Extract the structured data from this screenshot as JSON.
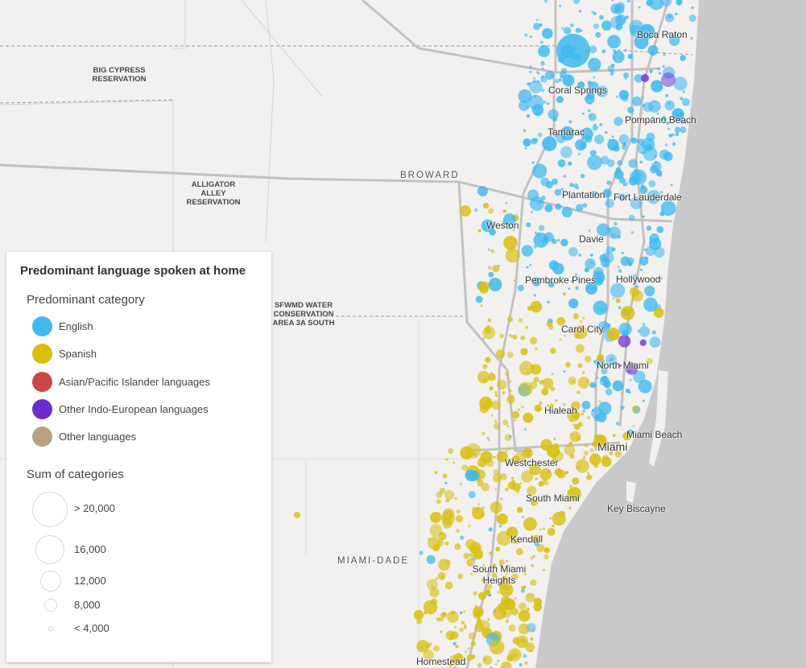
{
  "map": {
    "places": [
      "Boca Raton",
      "Coral Springs",
      "Pompano Beach",
      "Tamarac",
      "Plantation",
      "Fort Lauderdale",
      "Weston",
      "Davie",
      "Pembroke Pines",
      "Hollywood",
      "Carol City",
      "North Miami",
      "Hialeah",
      "Miami Beach",
      "Miami",
      "Westchester",
      "South Miami",
      "Key Biscayne",
      "Kendall",
      "South Miami Heights",
      "Homestead"
    ],
    "areas": [
      "BIG CYPRESS RESERVATION",
      "ALLIGATOR ALLEY RESERVATION",
      "SFWMD WATER CONSERVATION AREA 3A SOUTH"
    ],
    "counties": [
      "BROWARD",
      "MIAMI-DADE"
    ]
  },
  "legend": {
    "title": "Predominant language spoken at home",
    "category_title": "Predominant category",
    "categories": [
      {
        "label": "English",
        "color": "#40b9ef"
      },
      {
        "label": "Spanish",
        "color": "#d8bf12"
      },
      {
        "label": "Asian/Pacific Islander languages",
        "color": "#c84848"
      },
      {
        "label": "Other Indo-European languages",
        "color": "#6d2ccc"
      },
      {
        "label": "Other languages",
        "color": "#b9a284"
      }
    ],
    "size_title": "Sum of categories",
    "sizes": [
      "> 20,000",
      "16,000",
      "12,000",
      "8,000",
      "< 4,000"
    ]
  }
}
